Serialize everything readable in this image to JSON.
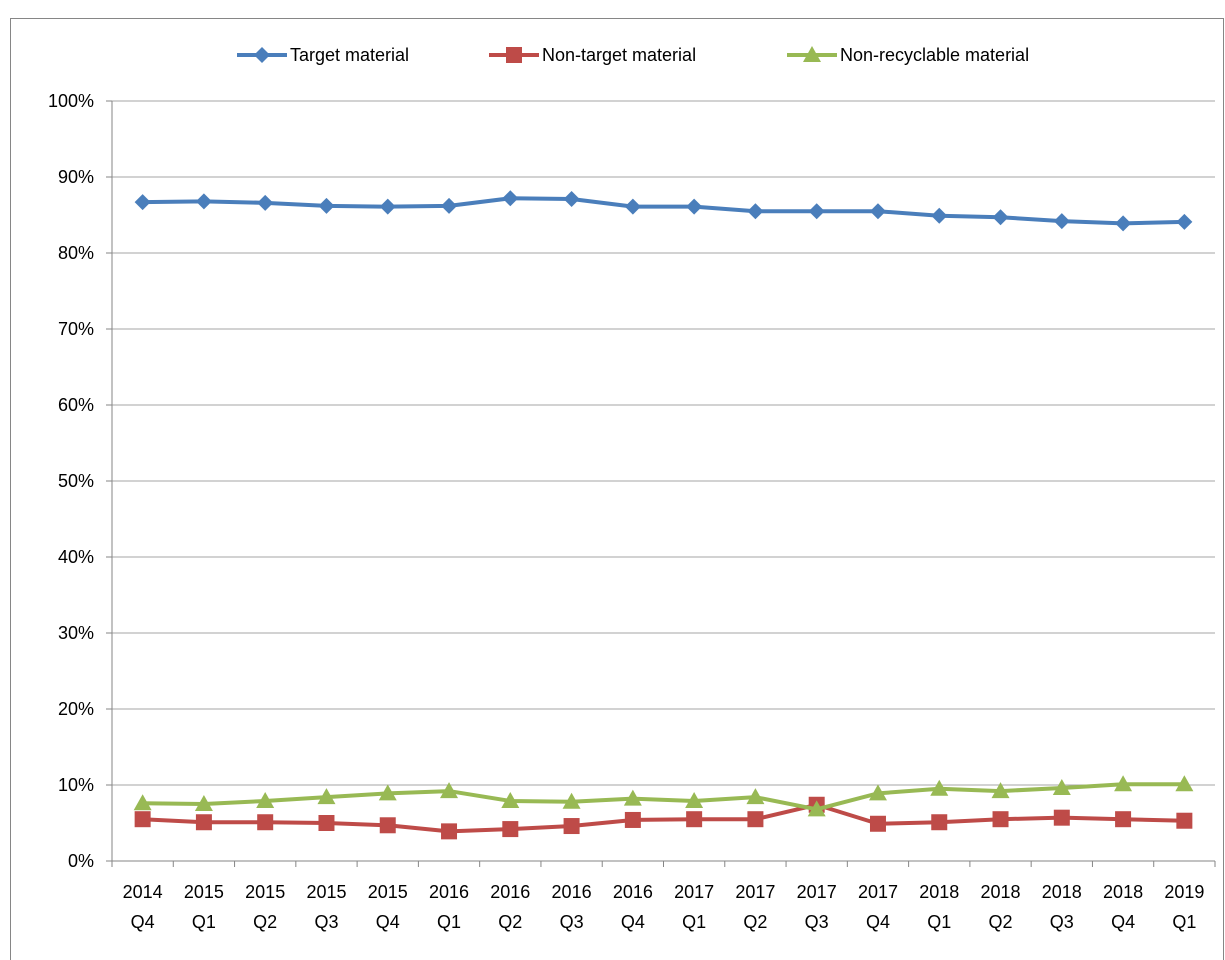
{
  "chart_data": {
    "type": "line",
    "categories": [
      "2014 Q4",
      "2015 Q1",
      "2015 Q2",
      "2015 Q3",
      "2015 Q4",
      "2016 Q1",
      "2016 Q2",
      "2016 Q3",
      "2016 Q4",
      "2017 Q1",
      "2017 Q2",
      "2017 Q3",
      "2017 Q4",
      "2018 Q1",
      "2018 Q2",
      "2018 Q3",
      "2018 Q4",
      "2019 Q1"
    ],
    "series": [
      {
        "name": "Target material",
        "color": "#4a7ebb",
        "marker": "diamond",
        "values": [
          86.7,
          86.8,
          86.6,
          86.2,
          86.1,
          86.2,
          87.2,
          87.1,
          86.1,
          86.1,
          85.5,
          85.5,
          85.5,
          84.9,
          84.7,
          84.2,
          83.9,
          84.1
        ]
      },
      {
        "name": "Non-target material",
        "color": "#be4b48",
        "marker": "square",
        "values": [
          5.5,
          5.1,
          5.1,
          5.0,
          4.7,
          3.9,
          4.2,
          4.6,
          5.4,
          5.5,
          5.5,
          7.4,
          4.9,
          5.1,
          5.5,
          5.7,
          5.5,
          5.3
        ]
      },
      {
        "name": "Non-recyclable material",
        "color": "#98b954",
        "marker": "triangle",
        "values": [
          7.6,
          7.5,
          7.9,
          8.4,
          8.9,
          9.2,
          7.9,
          7.8,
          8.2,
          7.9,
          8.4,
          6.8,
          8.9,
          9.5,
          9.2,
          9.6,
          10.1,
          10.1
        ]
      }
    ],
    "ylim": [
      0,
      100
    ],
    "yticks": [
      {
        "value": 0,
        "label": "0%"
      },
      {
        "value": 10,
        "label": "10%"
      },
      {
        "value": 20,
        "label": "20%"
      },
      {
        "value": 30,
        "label": "30%"
      },
      {
        "value": 40,
        "label": "40%"
      },
      {
        "value": 50,
        "label": "50%"
      },
      {
        "value": 60,
        "label": "60%"
      },
      {
        "value": 70,
        "label": "70%"
      },
      {
        "value": 80,
        "label": "80%"
      },
      {
        "value": 90,
        "label": "90%"
      },
      {
        "value": 100,
        "label": "100%"
      }
    ],
    "grid": true,
    "legend": "top"
  }
}
